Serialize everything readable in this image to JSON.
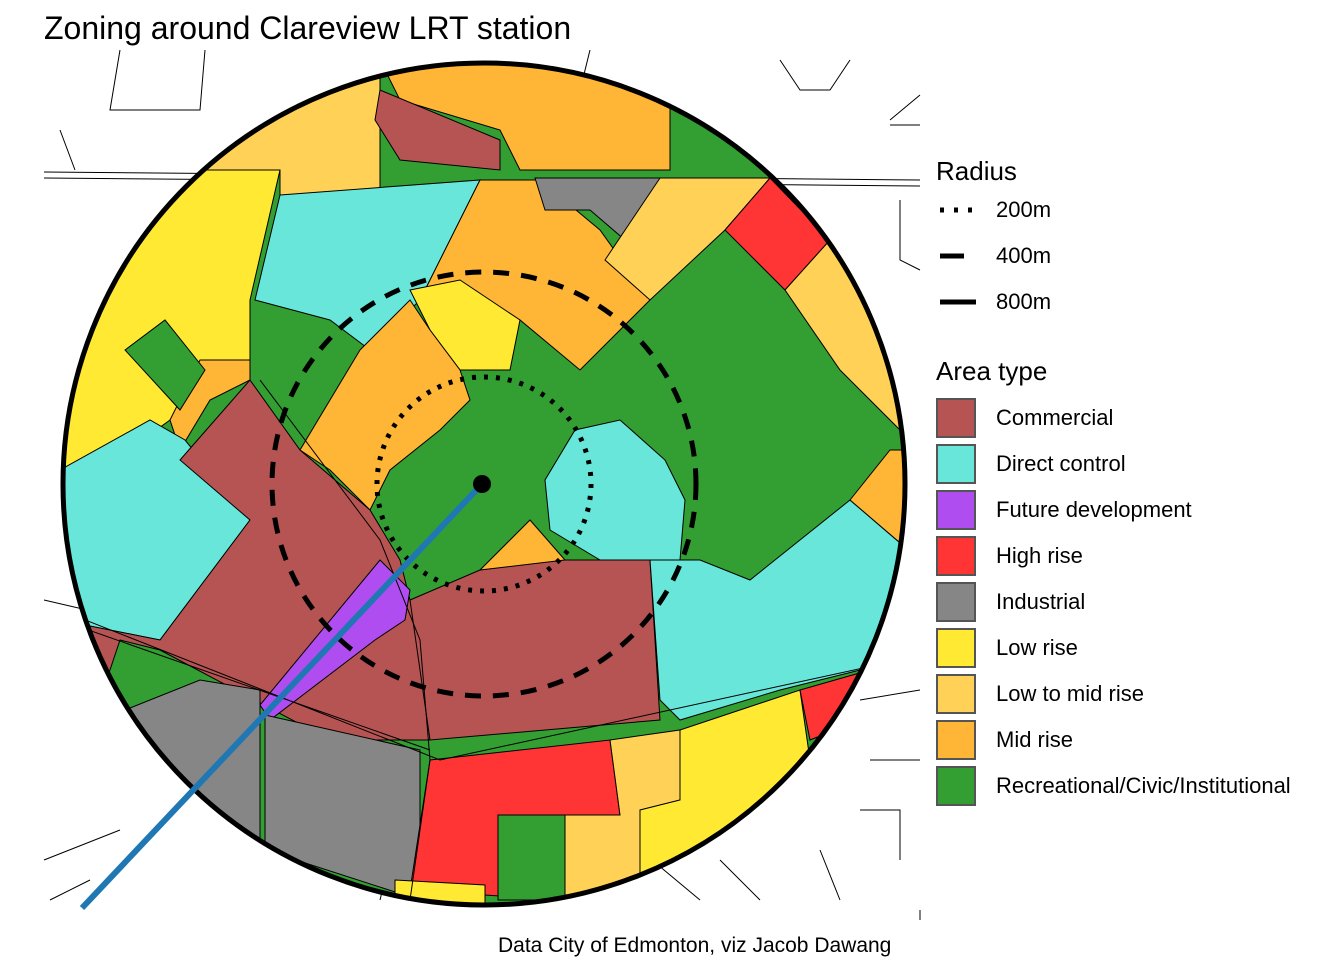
{
  "title": "Zoning around Clareview LRT station",
  "caption": "Data City of Edmonton, viz Jacob Dawang",
  "legend_radius": {
    "title": "Radius",
    "items": [
      {
        "label": "200m",
        "line": "dotted"
      },
      {
        "label": "400m",
        "line": "dashed"
      },
      {
        "label": "800m",
        "line": "solid"
      }
    ]
  },
  "legend_area": {
    "title": "Area type",
    "items": [
      {
        "label": "Commercial",
        "color": "#B55453"
      },
      {
        "label": "Direct control",
        "color": "#67E6D9"
      },
      {
        "label": "Future development",
        "color": "#B04DF0"
      },
      {
        "label": "High rise",
        "color": "#FF3434"
      },
      {
        "label": "Industrial",
        "color": "#868686"
      },
      {
        "label": "Low rise",
        "color": "#FFE933"
      },
      {
        "label": "Low to mid rise",
        "color": "#FFD257"
      },
      {
        "label": "Mid rise",
        "color": "#FFB536"
      },
      {
        "label": "Recreational/Civic/Institutional",
        "color": "#339E32"
      }
    ]
  },
  "lrt_line_color": "#1F78B4"
}
